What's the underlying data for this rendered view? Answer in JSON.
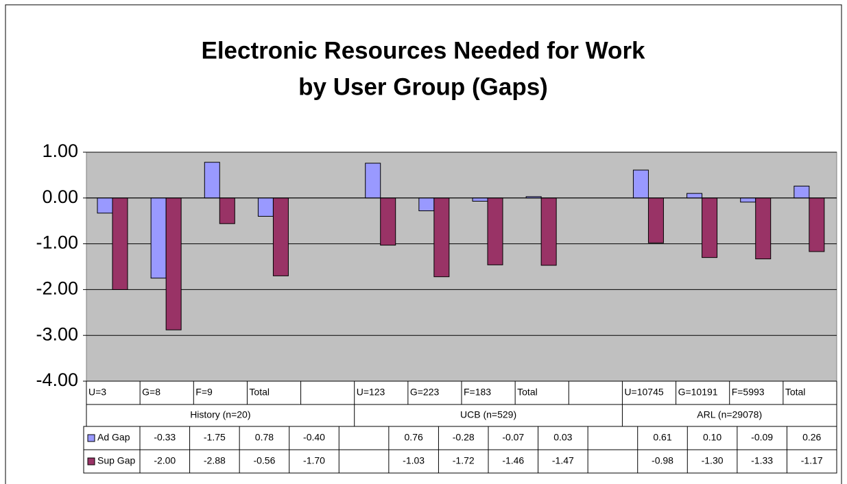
{
  "chart_data": {
    "type": "bar",
    "title": [
      "Electronic Resources Needed for Work",
      "by User Group (Gaps)"
    ],
    "categories": [
      "U=3",
      "G=8",
      "F=9",
      "Total",
      null,
      "U=123",
      "G=223",
      "F=183",
      "Total",
      null,
      "U=10745",
      "G=10191",
      "F=5993",
      "Total"
    ],
    "groups": [
      "History (n=20)",
      "UCB (n=529)",
      "ARL (n=29078)"
    ],
    "series": [
      {
        "name": "Ad Gap",
        "color": "#9999ff",
        "values": [
          -0.33,
          -1.75,
          0.78,
          -0.4,
          null,
          0.76,
          -0.28,
          -0.07,
          0.03,
          null,
          0.61,
          0.1,
          -0.09,
          0.26
        ],
        "value_labels": [
          "-0.33",
          "-1.75",
          "0.78",
          "-0.40",
          null,
          "0.76",
          "-0.28",
          "-0.07",
          "0.03",
          null,
          "0.61",
          "0.10",
          "-0.09",
          "0.26"
        ]
      },
      {
        "name": "Sup Gap",
        "color": "#993366",
        "values": [
          -2,
          -2.88,
          -0.56,
          -1.7,
          null,
          -1.03,
          -1.72,
          -1.46,
          -1.47,
          null,
          -0.98,
          -1.3,
          -1.33,
          -1.17
        ],
        "value_labels": [
          "-2.00",
          "-2.88",
          "-0.56",
          "-1.70",
          null,
          "-1.03",
          "-1.72",
          "-1.46",
          "-1.47",
          null,
          "-0.98",
          "-1.30",
          "-1.33",
          "-1.17"
        ]
      }
    ],
    "ylim": [
      -4,
      1
    ],
    "yticks": [
      {
        "value": 1,
        "label": "1.00"
      },
      {
        "value": 0,
        "label": "0.00"
      },
      {
        "value": -1,
        "label": "-1.00"
      },
      {
        "value": -2,
        "label": "-2.00"
      },
      {
        "value": -3,
        "label": "-3.00"
      },
      {
        "value": -4,
        "label": "-4.00"
      }
    ],
    "grid": true,
    "plot_background": "#c0c0c0"
  }
}
